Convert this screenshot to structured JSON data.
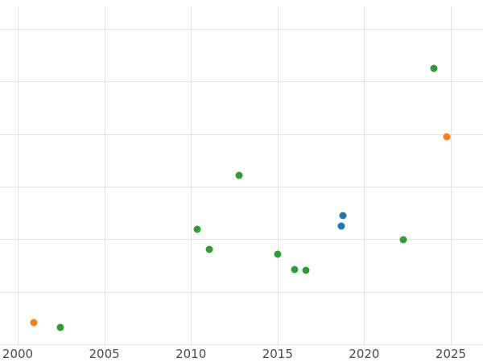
{
  "colors": {
    "background": "#ffffff",
    "grid": "#e2e2e2",
    "tick_text": "#4a4a4a"
  },
  "chart_data": {
    "type": "scatter",
    "title": "",
    "xlabel": "",
    "ylabel": "",
    "grid": true,
    "legend_position": "none",
    "x_ticks": [
      2000,
      2005,
      2010,
      2015,
      2020,
      2025
    ],
    "x_tick_labels": [
      "2000",
      "2005",
      "2010",
      "2015",
      "2020",
      "2025"
    ],
    "y_ticks": [
      0,
      1,
      2,
      3,
      4,
      5,
      6
    ],
    "y_tick_labels": [],
    "xlim": [
      1998.98,
      2026.86
    ],
    "ylim": [
      -0.03,
      6.43
    ],
    "series": [
      {
        "name": "green-series",
        "color": "#2ca02c",
        "points": [
          [
            2002.46,
            0.32
          ],
          [
            2010.36,
            2.19
          ],
          [
            2011.06,
            1.81
          ],
          [
            2012.78,
            3.22
          ],
          [
            2015.01,
            1.72
          ],
          [
            2015.99,
            1.42
          ],
          [
            2016.64,
            1.41
          ],
          [
            2022.26,
            1.99
          ],
          [
            2024.02,
            5.25
          ]
        ]
      },
      {
        "name": "orange-series",
        "color": "#ff7f0e",
        "points": [
          [
            2000.93,
            0.41
          ],
          [
            2024.77,
            3.95
          ]
        ]
      },
      {
        "name": "blue-series",
        "color": "#1f77b4",
        "points": [
          [
            2018.68,
            2.25
          ],
          [
            2018.77,
            2.45
          ]
        ]
      }
    ]
  }
}
